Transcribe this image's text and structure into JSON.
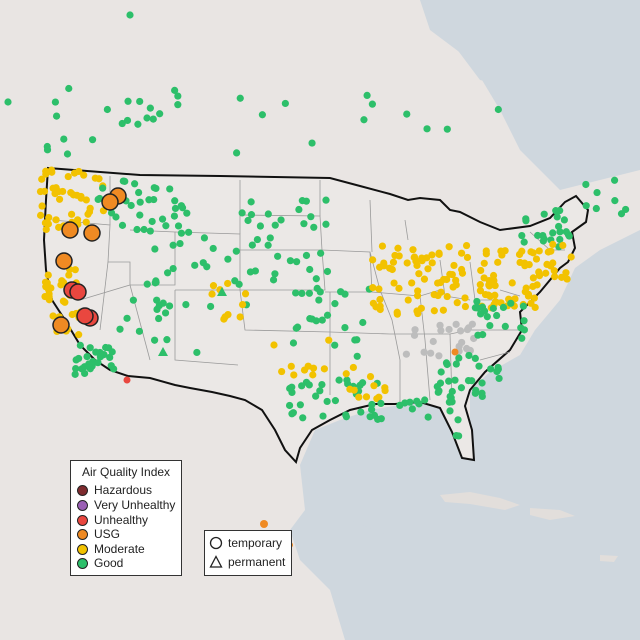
{
  "map": {
    "colors": {
      "water": "#cfd7de",
      "land": "#e9e5e3",
      "us_land": "#ebe8e6",
      "border": "#111111",
      "state_lines": "#9a9a9a"
    }
  },
  "legend": {
    "title": "Air Quality Index",
    "items": [
      {
        "label": "Hazardous",
        "color": "#7e2b2e"
      },
      {
        "label": "Very Unhealthy",
        "color": "#9a5fb4"
      },
      {
        "label": "Unhealthy",
        "color": "#e9473f"
      },
      {
        "label": "USG",
        "color": "#ef8a23"
      },
      {
        "label": "Moderate",
        "color": "#f2c200"
      },
      {
        "label": "Good",
        "color": "#2dbf6a"
      }
    ]
  },
  "type_legend": {
    "items": [
      {
        "label": "temporary",
        "icon": "circle-icon"
      },
      {
        "label": "permanent",
        "icon": "triangle-icon"
      }
    ]
  }
}
